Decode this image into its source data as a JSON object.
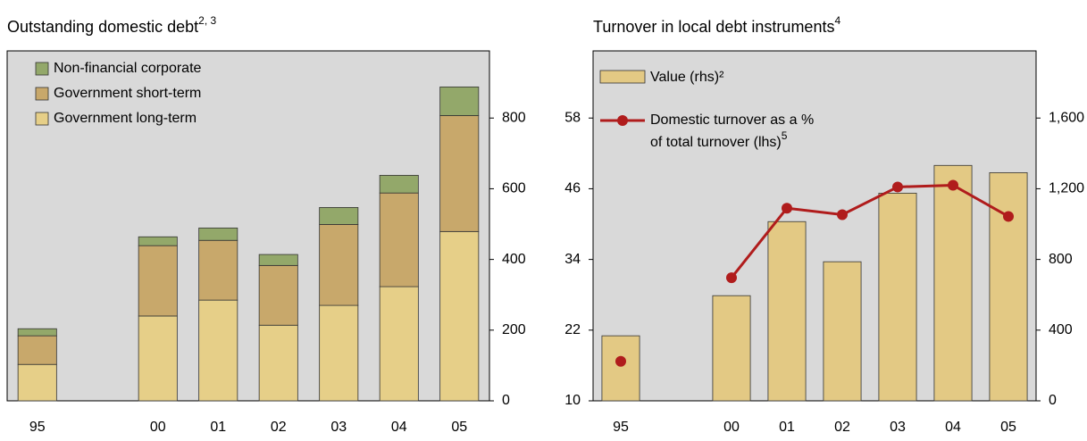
{
  "chart_data": [
    {
      "type": "stacked_bar",
      "title": "Outstanding domestic debt",
      "title_sup": "2, 3",
      "categories": [
        "95",
        null,
        "00",
        "01",
        "02",
        "03",
        "04",
        "05"
      ],
      "series": [
        {
          "name": "Government long-term",
          "color": "#e6cf88",
          "values": [
            103,
            null,
            240,
            285,
            214,
            270,
            323,
            479
          ]
        },
        {
          "name": "Government short-term",
          "color": "#c8a86b",
          "values": [
            81,
            null,
            199,
            169,
            169,
            229,
            265,
            328
          ]
        },
        {
          "name": "Non-financial corporate",
          "color": "#93a86a",
          "values": [
            20,
            null,
            25,
            35,
            31,
            48,
            50,
            81
          ]
        }
      ],
      "ylim": [
        0,
        990
      ],
      "yticks": [
        0,
        200,
        400,
        600,
        800
      ]
    },
    {
      "type": "bar_line",
      "title": "Turnover in local debt instruments",
      "title_sup": "4",
      "categories": [
        "95",
        null,
        "00",
        "01",
        "02",
        "03",
        "04",
        "05"
      ],
      "series": [
        {
          "name": "Value (rhs)²",
          "color": "#e3c984",
          "axis": "y2",
          "values": [
            368,
            null,
            595,
            1014,
            787,
            1175,
            1332,
            1291
          ]
        },
        {
          "name_lines": [
            "Domestic turnover as a %",
            "of total turnover (lhs)"
          ],
          "name_sup": "5",
          "color": "#b01c1c",
          "values": [
            16.7,
            null,
            30.9,
            42.7,
            41.6,
            46.3,
            46.6,
            41.3
          ]
        }
      ],
      "ylim": [
        10,
        69.4
      ],
      "yticks": [
        10,
        22,
        34,
        46,
        58
      ],
      "y2lim": [
        0,
        1980
      ],
      "y2ticks": [
        0,
        400,
        800,
        {
          "value": 1200,
          "label": "1,200"
        },
        {
          "value": 1600,
          "label": "1,600"
        }
      ]
    }
  ]
}
